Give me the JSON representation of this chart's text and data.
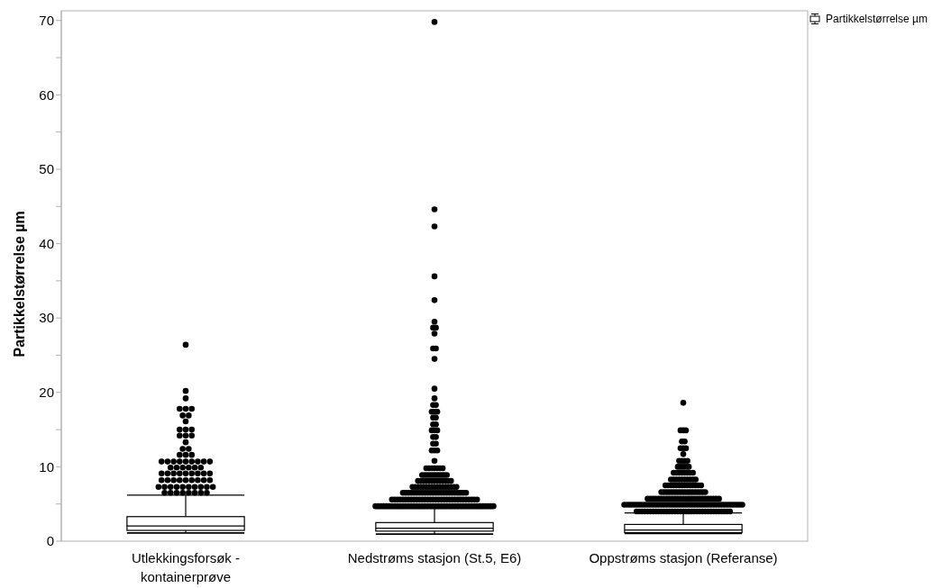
{
  "chart_data": {
    "type": "box",
    "ylabel": "Partikkelstørrelse µm",
    "categories": [
      "Utlekkingsforsøk - kontainerprøve",
      "Nedstrøms stasjon (St.5, E6)",
      "Oppstrøms stasjon (Referanse)"
    ],
    "series": [
      {
        "name": "Partikkelstørrelse µm",
        "color": "#000000",
        "boxes": [
          {
            "low": 1.1,
            "q1": 1.45,
            "median": 2.05,
            "q3": 3.3,
            "high": 6.2,
            "outliers": [
              26.4,
              20.2,
              19.2,
              17.8,
              17.8,
              17.8,
              16.9,
              16.9,
              16.1,
              15.0,
              15.0,
              15.0,
              14.2,
              14.2,
              14.2,
              13.3,
              12.4,
              12.4,
              11.6,
              11.6,
              11.6,
              10.7,
              10.7,
              10.7,
              10.7,
              10.7,
              10.7,
              10.7,
              10.7,
              10.7,
              9.9,
              9.9,
              9.9,
              9.9,
              9.9,
              9.9,
              9.1,
              9.1,
              9.1,
              9.1,
              9.1,
              9.1,
              9.1,
              9.1,
              9.1,
              8.2,
              8.2,
              8.2,
              8.2,
              8.2,
              8.2,
              8.2,
              8.2,
              8.2,
              7.3,
              7.3,
              7.3,
              7.3,
              7.3,
              7.3,
              7.3,
              7.3,
              7.3,
              7.3,
              6.5,
              6.5,
              6.5,
              6.5,
              6.5,
              6.5,
              6.5,
              6.5
            ]
          },
          {
            "low": 0.95,
            "q1": 1.35,
            "median": 1.75,
            "q3": 2.5,
            "high": 4.4,
            "outliers": [
              69.8,
              44.6,
              42.3,
              35.6,
              32.4,
              29.5,
              28.7,
              28.7,
              27.9,
              25.9,
              25.9,
              24.5,
              20.5,
              19.2,
              18.3,
              18.3,
              17.4,
              17.4,
              17.4,
              16.6,
              16.6,
              15.7,
              15.7,
              14.9,
              14.9,
              14.9,
              14.0,
              14.0,
              13.1,
              13.1,
              12.2,
              12.2,
              12.2,
              10.8,
              9.8,
              9.8,
              9.8,
              9.8,
              9.8,
              9.8,
              9.8,
              8.9,
              8.9,
              8.9,
              8.9,
              8.9,
              8.9,
              8.9,
              8.9,
              8.9,
              8.9,
              8.1,
              8.1,
              8.1,
              8.1,
              8.1,
              8.1,
              8.1,
              8.1,
              8.1,
              8.1,
              8.1,
              8.1,
              8.1,
              7.3,
              7.3,
              7.3,
              7.3,
              7.3,
              7.3,
              7.3,
              7.3,
              7.3,
              7.3,
              7.3,
              7.3,
              7.3,
              7.3,
              7.3,
              7.3,
              7.3,
              6.5,
              6.5,
              6.5,
              6.5,
              6.5,
              6.5,
              6.5,
              6.5,
              6.5,
              6.5,
              6.5,
              6.5,
              6.5,
              6.5,
              6.5,
              6.5,
              6.5,
              6.5,
              6.5,
              6.5,
              6.5,
              6.5,
              6.5,
              6.5,
              5.6,
              5.6,
              5.6,
              5.6,
              5.6,
              5.6,
              5.6,
              5.6,
              5.6,
              5.6,
              5.6,
              5.6,
              5.6,
              5.6,
              5.6,
              5.6,
              5.6,
              5.6,
              5.6,
              5.6,
              5.6,
              5.6,
              5.6,
              5.6,
              5.6,
              5.6,
              5.6,
              5.6,
              5.6,
              5.6,
              5.6,
              5.6,
              4.7,
              4.7,
              4.7,
              4.7,
              4.7,
              4.7,
              4.7,
              4.7,
              4.7,
              4.7,
              4.7,
              4.7,
              4.7,
              4.7,
              4.7,
              4.7,
              4.7,
              4.7,
              4.7,
              4.7,
              4.7,
              4.7,
              4.7,
              4.7,
              4.7,
              4.7,
              4.7,
              4.7,
              4.7,
              4.7,
              4.7,
              4.7,
              4.7,
              4.7,
              4.7,
              4.7,
              4.7,
              4.7,
              4.7,
              4.7,
              4.7,
              4.7,
              4.7,
              4.7
            ]
          },
          {
            "low": 1.05,
            "q1": 1.15,
            "median": 1.5,
            "q3": 2.25,
            "high": 3.8,
            "outliers": [
              18.6,
              14.9,
              14.9,
              14.9,
              13.4,
              13.4,
              12.5,
              12.5,
              12.5,
              11.7,
              10.8,
              10.8,
              10.8,
              10.8,
              10.0,
              10.0,
              10.0,
              10.0,
              10.0,
              9.2,
              9.2,
              9.2,
              9.2,
              9.2,
              9.2,
              9.2,
              9.2,
              8.3,
              8.3,
              8.3,
              8.3,
              8.3,
              8.3,
              8.3,
              8.3,
              8.3,
              8.3,
              7.5,
              7.5,
              7.5,
              7.5,
              7.5,
              7.5,
              7.5,
              7.5,
              7.5,
              7.5,
              7.5,
              7.5,
              7.5,
              7.5,
              6.6,
              6.6,
              6.6,
              6.6,
              6.6,
              6.6,
              6.6,
              6.6,
              6.6,
              6.6,
              6.6,
              6.6,
              6.6,
              6.6,
              6.6,
              6.6,
              6.6,
              5.7,
              5.7,
              5.7,
              5.7,
              5.7,
              5.7,
              5.7,
              5.7,
              5.7,
              5.7,
              5.7,
              5.7,
              5.7,
              5.7,
              5.7,
              5.7,
              5.7,
              5.7,
              5.7,
              5.7,
              5.7,
              5.7,
              5.7,
              5.7,
              5.7,
              5.7,
              5.7,
              4.9,
              4.9,
              4.9,
              4.9,
              4.9,
              4.9,
              4.9,
              4.9,
              4.9,
              4.9,
              4.9,
              4.9,
              4.9,
              4.9,
              4.9,
              4.9,
              4.9,
              4.9,
              4.9,
              4.9,
              4.9,
              4.9,
              4.9,
              4.9,
              4.9,
              4.9,
              4.9,
              4.9,
              4.9,
              4.9,
              4.9,
              4.9,
              4.9,
              4.9,
              4.9,
              4.9,
              4.9,
              4.9,
              4.9,
              4.9,
              4.9,
              4.9,
              4.9,
              4.9,
              4.0,
              4.0,
              4.0,
              4.0,
              4.0,
              4.0,
              4.0,
              4.0,
              4.0,
              4.0,
              4.0,
              4.0,
              4.0,
              4.0,
              4.0,
              4.0,
              4.0,
              4.0,
              4.0,
              4.0,
              4.0,
              4.0,
              4.0,
              4.0,
              4.0,
              4.0,
              4.0,
              4.0,
              4.0,
              4.0,
              4.0,
              4.0,
              4.0,
              4.0,
              4.0
            ]
          }
        ]
      }
    ],
    "ylim": [
      0,
      71.3
    ],
    "yticks": [
      0,
      {
        "value": 5,
        "label": null
      },
      10,
      {
        "value": 15,
        "label": null
      },
      20,
      {
        "value": 25,
        "label": null
      },
      30,
      {
        "value": 35,
        "label": null
      },
      40,
      {
        "value": 45,
        "label": null
      },
      50,
      {
        "value": 55,
        "label": null
      },
      60,
      {
        "value": 65,
        "label": null
      },
      70
    ],
    "legend": "top right",
    "marker": "circle"
  }
}
